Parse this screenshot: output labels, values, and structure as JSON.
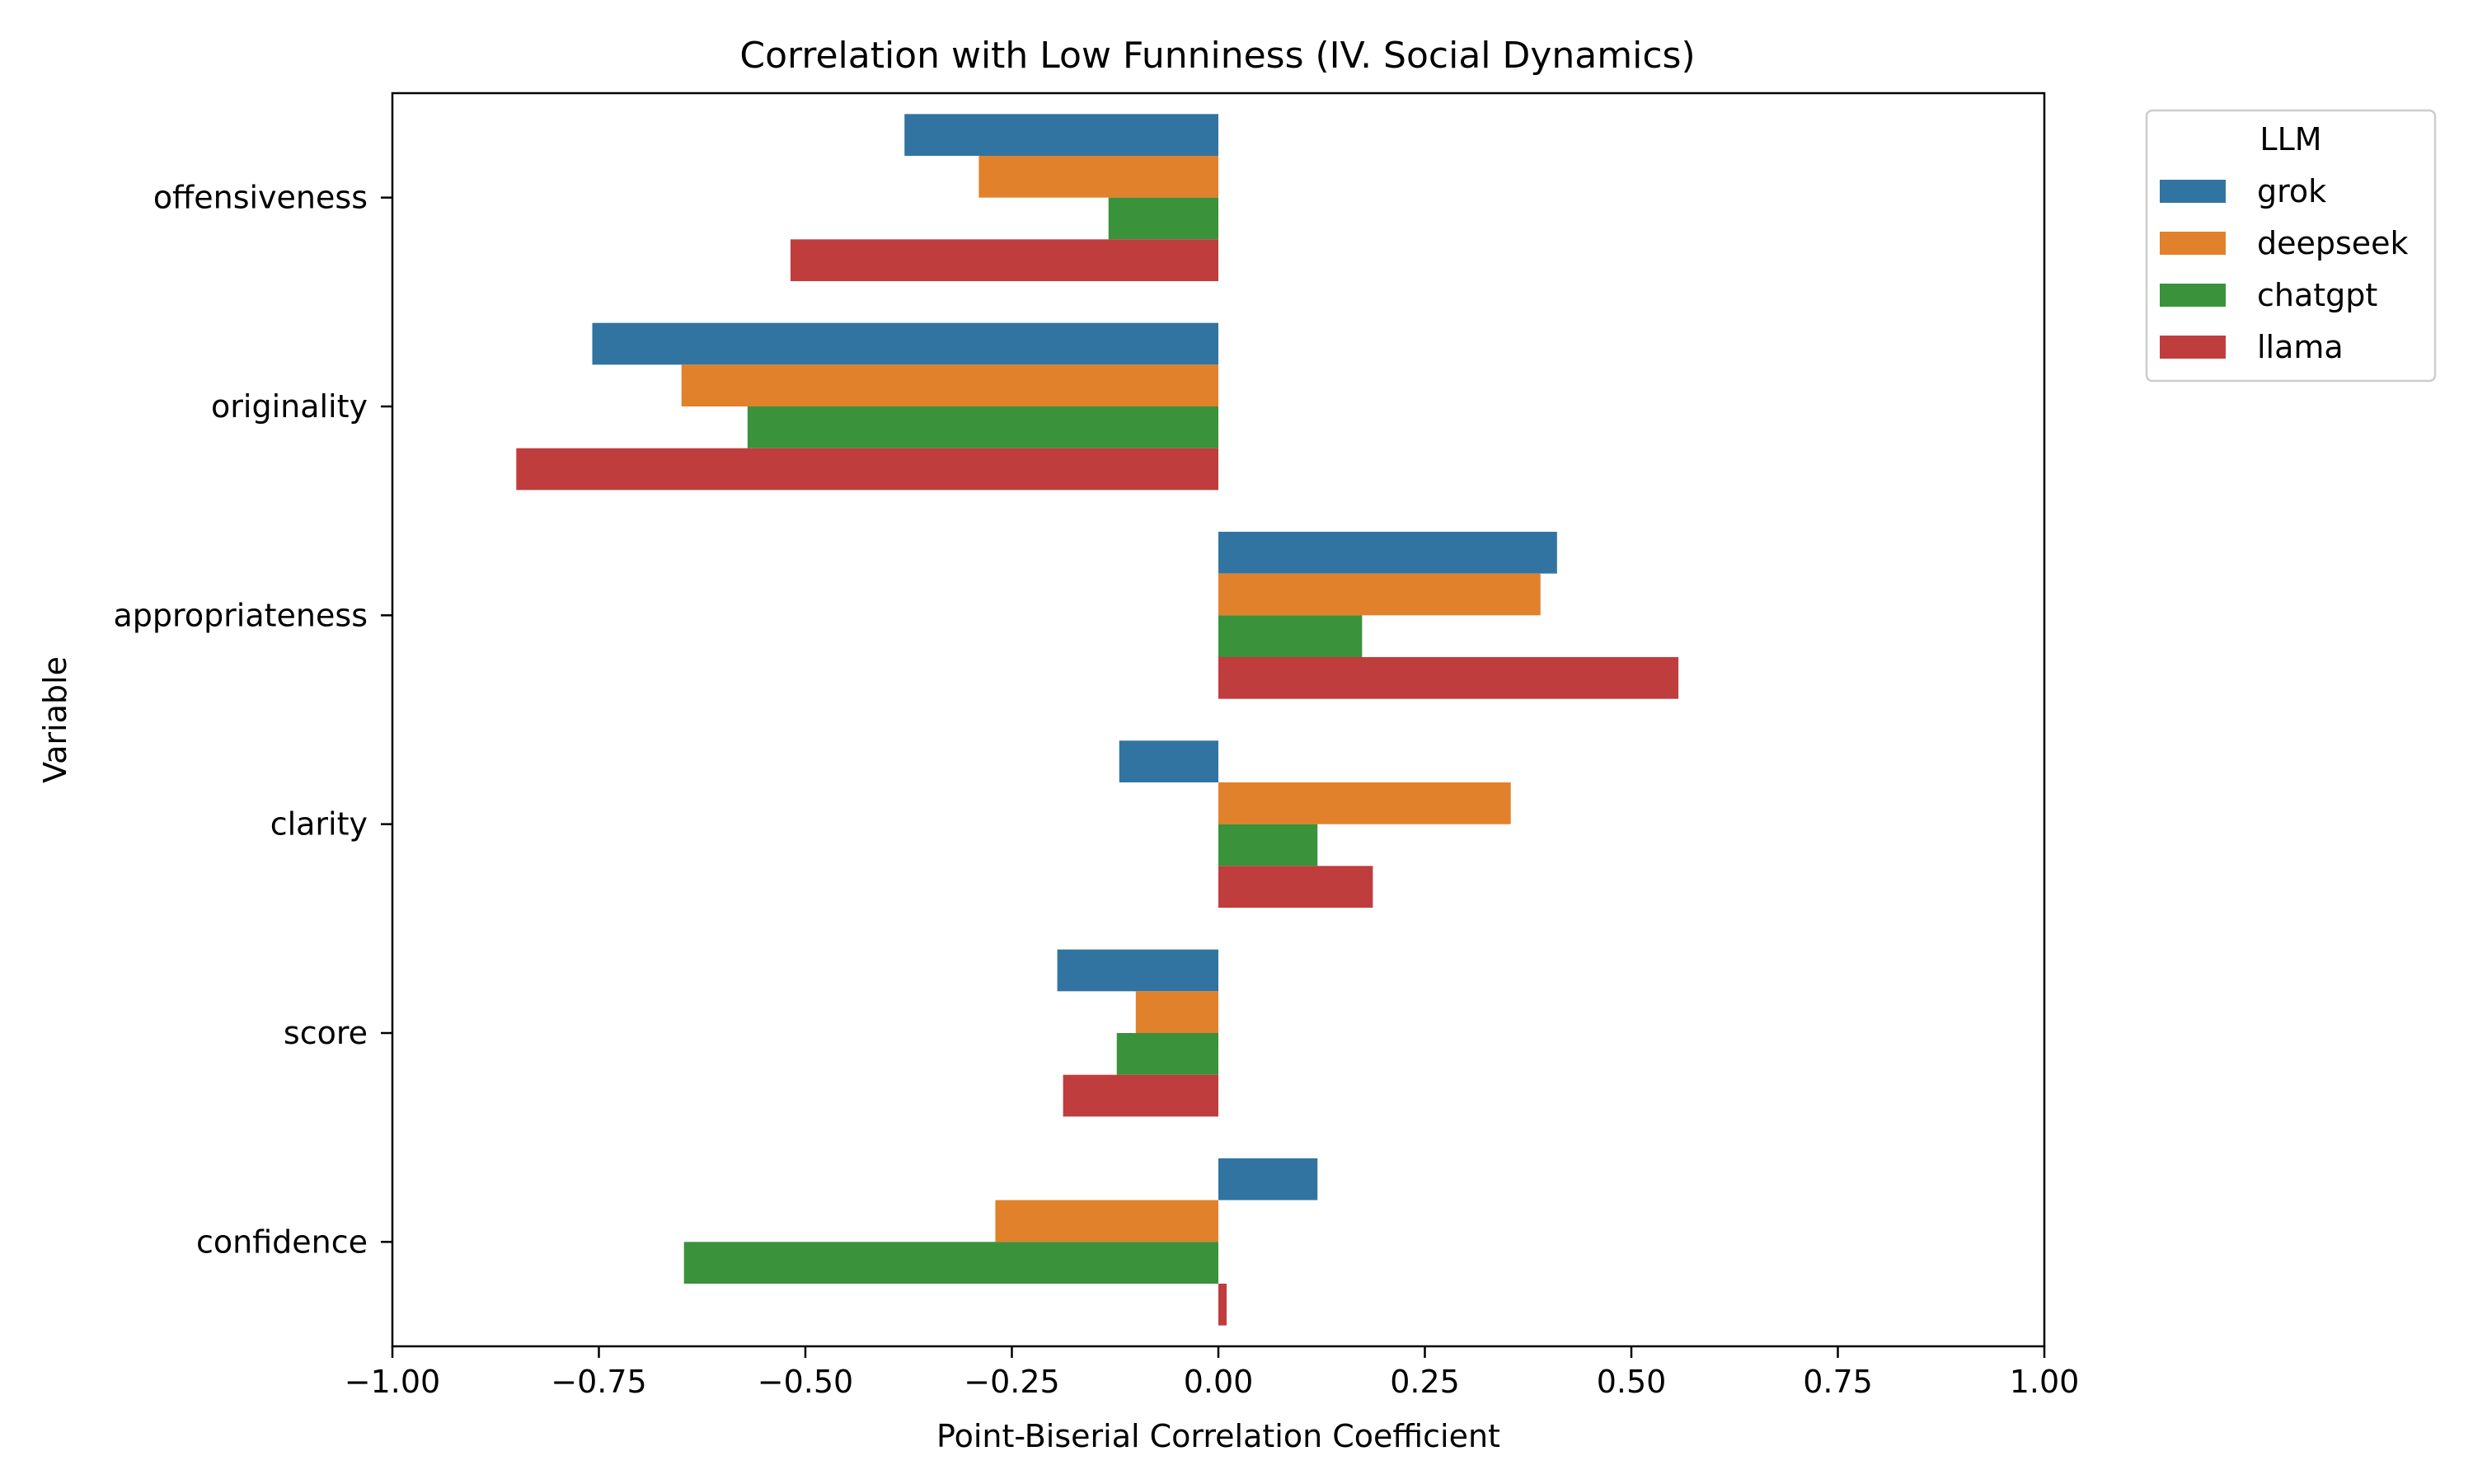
{
  "chart_data": {
    "type": "bar",
    "orientation": "horizontal",
    "title": "Correlation with Low Funniness (IV. Social Dynamics)",
    "xlabel": "Point-Biserial Correlation Coefficient",
    "ylabel": "Variable",
    "xlim": [
      -1.0,
      1.0
    ],
    "xticks": [
      -1.0,
      -0.75,
      -0.5,
      -0.25,
      0.0,
      0.25,
      0.5,
      0.75,
      1.0
    ],
    "xtick_labels": [
      "−1.00",
      "−0.75",
      "−0.50",
      "−0.25",
      "0.00",
      "0.25",
      "0.50",
      "0.75",
      "1.00"
    ],
    "categories": [
      "offensiveness",
      "originality",
      "appropriateness",
      "clarity",
      "score",
      "confidence"
    ],
    "legend": {
      "title": "LLM",
      "placement": "outside-upper-right"
    },
    "grid": false,
    "series": [
      {
        "name": "grok",
        "color": "#3274a1",
        "values": [
          -0.38,
          -0.758,
          0.41,
          -0.12,
          -0.195,
          0.12
        ]
      },
      {
        "name": "deepseek",
        "color": "#e1812c",
        "values": [
          -0.29,
          -0.65,
          0.39,
          0.354,
          -0.1,
          -0.27
        ]
      },
      {
        "name": "chatgpt",
        "color": "#3a923a",
        "values": [
          -0.133,
          -0.57,
          0.174,
          0.12,
          -0.123,
          -0.647
        ]
      },
      {
        "name": "llama",
        "color": "#c03d3e",
        "values": [
          -0.518,
          -0.85,
          0.557,
          0.187,
          -0.188,
          0.01
        ]
      }
    ]
  }
}
